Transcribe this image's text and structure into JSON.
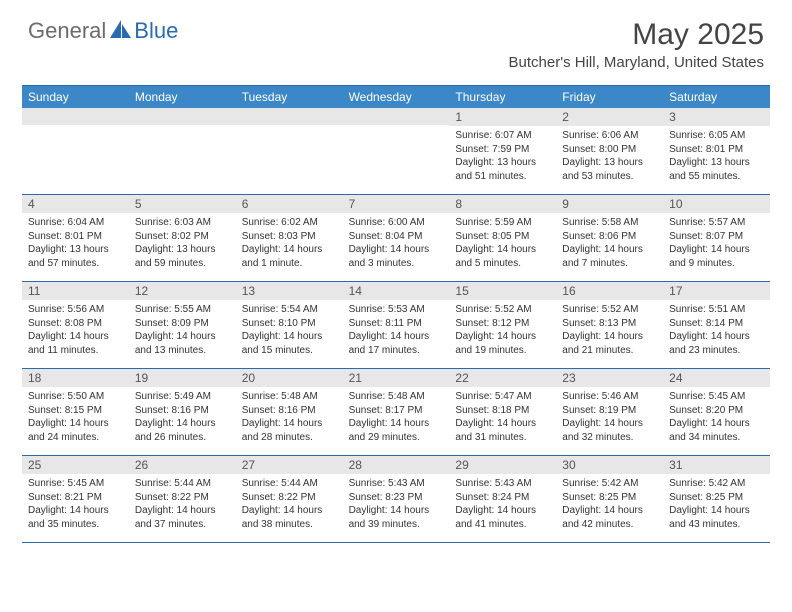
{
  "colors": {
    "header_bg": "#3b87c8",
    "border": "#2a6bb0",
    "num_bg": "#e7e7e7",
    "logo_gray": "#6b6b6b",
    "logo_blue": "#2a6bb0"
  },
  "logo": {
    "part1": "General",
    "part2": "Blue"
  },
  "title": "May 2025",
  "location": "Butcher's Hill, Maryland, United States",
  "day_names": [
    "Sunday",
    "Monday",
    "Tuesday",
    "Wednesday",
    "Thursday",
    "Friday",
    "Saturday"
  ],
  "weeks": [
    [
      {
        "n": "",
        "sr": "",
        "ss": "",
        "dl": ""
      },
      {
        "n": "",
        "sr": "",
        "ss": "",
        "dl": ""
      },
      {
        "n": "",
        "sr": "",
        "ss": "",
        "dl": ""
      },
      {
        "n": "",
        "sr": "",
        "ss": "",
        "dl": ""
      },
      {
        "n": "1",
        "sr": "Sunrise: 6:07 AM",
        "ss": "Sunset: 7:59 PM",
        "dl": "Daylight: 13 hours and 51 minutes."
      },
      {
        "n": "2",
        "sr": "Sunrise: 6:06 AM",
        "ss": "Sunset: 8:00 PM",
        "dl": "Daylight: 13 hours and 53 minutes."
      },
      {
        "n": "3",
        "sr": "Sunrise: 6:05 AM",
        "ss": "Sunset: 8:01 PM",
        "dl": "Daylight: 13 hours and 55 minutes."
      }
    ],
    [
      {
        "n": "4",
        "sr": "Sunrise: 6:04 AM",
        "ss": "Sunset: 8:01 PM",
        "dl": "Daylight: 13 hours and 57 minutes."
      },
      {
        "n": "5",
        "sr": "Sunrise: 6:03 AM",
        "ss": "Sunset: 8:02 PM",
        "dl": "Daylight: 13 hours and 59 minutes."
      },
      {
        "n": "6",
        "sr": "Sunrise: 6:02 AM",
        "ss": "Sunset: 8:03 PM",
        "dl": "Daylight: 14 hours and 1 minute."
      },
      {
        "n": "7",
        "sr": "Sunrise: 6:00 AM",
        "ss": "Sunset: 8:04 PM",
        "dl": "Daylight: 14 hours and 3 minutes."
      },
      {
        "n": "8",
        "sr": "Sunrise: 5:59 AM",
        "ss": "Sunset: 8:05 PM",
        "dl": "Daylight: 14 hours and 5 minutes."
      },
      {
        "n": "9",
        "sr": "Sunrise: 5:58 AM",
        "ss": "Sunset: 8:06 PM",
        "dl": "Daylight: 14 hours and 7 minutes."
      },
      {
        "n": "10",
        "sr": "Sunrise: 5:57 AM",
        "ss": "Sunset: 8:07 PM",
        "dl": "Daylight: 14 hours and 9 minutes."
      }
    ],
    [
      {
        "n": "11",
        "sr": "Sunrise: 5:56 AM",
        "ss": "Sunset: 8:08 PM",
        "dl": "Daylight: 14 hours and 11 minutes."
      },
      {
        "n": "12",
        "sr": "Sunrise: 5:55 AM",
        "ss": "Sunset: 8:09 PM",
        "dl": "Daylight: 14 hours and 13 minutes."
      },
      {
        "n": "13",
        "sr": "Sunrise: 5:54 AM",
        "ss": "Sunset: 8:10 PM",
        "dl": "Daylight: 14 hours and 15 minutes."
      },
      {
        "n": "14",
        "sr": "Sunrise: 5:53 AM",
        "ss": "Sunset: 8:11 PM",
        "dl": "Daylight: 14 hours and 17 minutes."
      },
      {
        "n": "15",
        "sr": "Sunrise: 5:52 AM",
        "ss": "Sunset: 8:12 PM",
        "dl": "Daylight: 14 hours and 19 minutes."
      },
      {
        "n": "16",
        "sr": "Sunrise: 5:52 AM",
        "ss": "Sunset: 8:13 PM",
        "dl": "Daylight: 14 hours and 21 minutes."
      },
      {
        "n": "17",
        "sr": "Sunrise: 5:51 AM",
        "ss": "Sunset: 8:14 PM",
        "dl": "Daylight: 14 hours and 23 minutes."
      }
    ],
    [
      {
        "n": "18",
        "sr": "Sunrise: 5:50 AM",
        "ss": "Sunset: 8:15 PM",
        "dl": "Daylight: 14 hours and 24 minutes."
      },
      {
        "n": "19",
        "sr": "Sunrise: 5:49 AM",
        "ss": "Sunset: 8:16 PM",
        "dl": "Daylight: 14 hours and 26 minutes."
      },
      {
        "n": "20",
        "sr": "Sunrise: 5:48 AM",
        "ss": "Sunset: 8:16 PM",
        "dl": "Daylight: 14 hours and 28 minutes."
      },
      {
        "n": "21",
        "sr": "Sunrise: 5:48 AM",
        "ss": "Sunset: 8:17 PM",
        "dl": "Daylight: 14 hours and 29 minutes."
      },
      {
        "n": "22",
        "sr": "Sunrise: 5:47 AM",
        "ss": "Sunset: 8:18 PM",
        "dl": "Daylight: 14 hours and 31 minutes."
      },
      {
        "n": "23",
        "sr": "Sunrise: 5:46 AM",
        "ss": "Sunset: 8:19 PM",
        "dl": "Daylight: 14 hours and 32 minutes."
      },
      {
        "n": "24",
        "sr": "Sunrise: 5:45 AM",
        "ss": "Sunset: 8:20 PM",
        "dl": "Daylight: 14 hours and 34 minutes."
      }
    ],
    [
      {
        "n": "25",
        "sr": "Sunrise: 5:45 AM",
        "ss": "Sunset: 8:21 PM",
        "dl": "Daylight: 14 hours and 35 minutes."
      },
      {
        "n": "26",
        "sr": "Sunrise: 5:44 AM",
        "ss": "Sunset: 8:22 PM",
        "dl": "Daylight: 14 hours and 37 minutes."
      },
      {
        "n": "27",
        "sr": "Sunrise: 5:44 AM",
        "ss": "Sunset: 8:22 PM",
        "dl": "Daylight: 14 hours and 38 minutes."
      },
      {
        "n": "28",
        "sr": "Sunrise: 5:43 AM",
        "ss": "Sunset: 8:23 PM",
        "dl": "Daylight: 14 hours and 39 minutes."
      },
      {
        "n": "29",
        "sr": "Sunrise: 5:43 AM",
        "ss": "Sunset: 8:24 PM",
        "dl": "Daylight: 14 hours and 41 minutes."
      },
      {
        "n": "30",
        "sr": "Sunrise: 5:42 AM",
        "ss": "Sunset: 8:25 PM",
        "dl": "Daylight: 14 hours and 42 minutes."
      },
      {
        "n": "31",
        "sr": "Sunrise: 5:42 AM",
        "ss": "Sunset: 8:25 PM",
        "dl": "Daylight: 14 hours and 43 minutes."
      }
    ]
  ]
}
